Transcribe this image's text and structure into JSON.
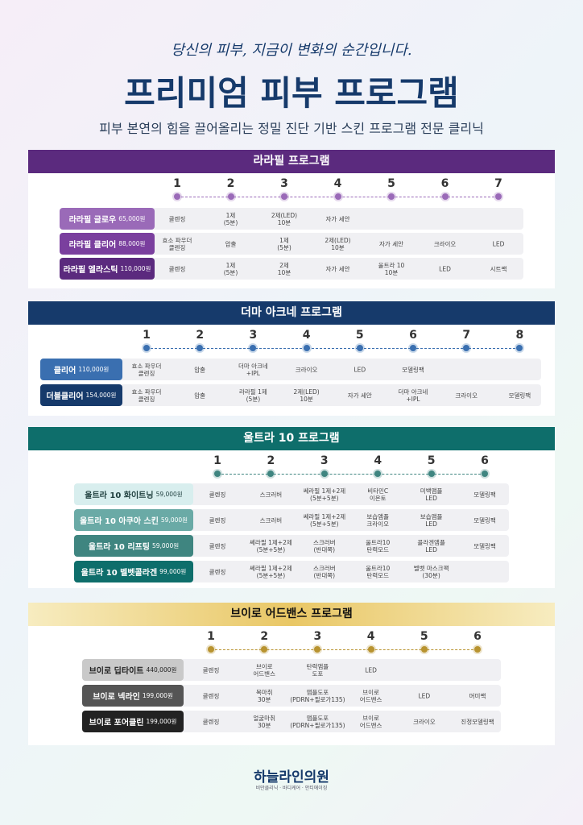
{
  "header": {
    "tagline": "당신의 피부, 지금이 변화의 순간입니다.",
    "title": "프리미엄 피부 프로그램",
    "subtitle": "피부 본연의 힘을 끌어올리는 정밀 진단 기반 스킨 프로그램 전문 클리닉"
  },
  "sections": [
    {
      "title": "라라필 프로그램",
      "steps": [
        1,
        2,
        3,
        4,
        5,
        6,
        7
      ],
      "rows": [
        {
          "name": "라라필 글로우",
          "price": "65,000원",
          "cells": [
            "클렌징",
            "1제\n(5분)",
            "2제(LED)\n10분",
            "자가 세안"
          ]
        },
        {
          "name": "라라필 클리어",
          "price": "88,000원",
          "cells": [
            "효소 파우더\n클렌징",
            "압출",
            "1제\n(5분)",
            "2제(LED)\n10분",
            "자가 세안",
            "크라이오",
            "LED"
          ]
        },
        {
          "name": "라라필 엘라스틱",
          "price": "110,000원",
          "cells": [
            "클렌징",
            "1제\n(5분)",
            "2제\n10분",
            "자가 세안",
            "울트라 10\n10분",
            "LED",
            "시트팩"
          ]
        }
      ]
    },
    {
      "title": "더마 아크네 프로그램",
      "steps": [
        1,
        2,
        3,
        4,
        5,
        6,
        7,
        8
      ],
      "rows": [
        {
          "name": "클리어",
          "price": "110,000원",
          "cells": [
            "효소 파우더\n클렌징",
            "압출",
            "더마 아크네\n+IPL",
            "크라이오",
            "LED",
            "모델링팩"
          ]
        },
        {
          "name": "더블클리어",
          "price": "154,000원",
          "cells": [
            "효소 파우더\n클렌징",
            "압출",
            "라라필 1제\n(5분)",
            "2제(LED)\n10분",
            "자가 세안",
            "더마 아크네\n+IPL",
            "크라이오",
            "모델링팩"
          ]
        }
      ]
    },
    {
      "title": "울트라 10 프로그램",
      "steps": [
        1,
        2,
        3,
        4,
        5,
        6
      ],
      "rows": [
        {
          "name": "울트라 10 화이트닝",
          "price": "59,000원",
          "cells": [
            "클렌징",
            "스크러버",
            "쎄라필 1제+2제\n(5분+5분)",
            "비타민C\n이온토",
            "미백앰플\nLED",
            "모델링팩"
          ]
        },
        {
          "name": "울트라 10 아쿠아 스킨",
          "price": "59,000원",
          "cells": [
            "클렌징",
            "스크러버",
            "쎄라필 1제+2제\n(5분+5분)",
            "보습앰플\n크라이오",
            "보습앰플\nLED",
            "모델링팩"
          ]
        },
        {
          "name": "울트라 10 리프팅",
          "price": "59,000원",
          "cells": [
            "클렌징",
            "쎄라필 1제+2제\n(5분+5분)",
            "스크러버\n(반대쪽)",
            "울트라10\n탄력모드",
            "콜라겐앰플\nLED",
            "모델링팩"
          ]
        },
        {
          "name": "울트라 10 벨벳콜라겐",
          "price": "99,000원",
          "cells": [
            "클렌징",
            "쎄라필 1제+2제\n(5분+5분)",
            "스크러버\n(반대쪽)",
            "울트라10\n탄력모드",
            "벨벳 마스크팩\n(30분)"
          ]
        }
      ]
    },
    {
      "title": "브이로 어드밴스 프로그램",
      "steps": [
        1,
        2,
        3,
        4,
        5,
        6
      ],
      "rows": [
        {
          "name": "브이로 딥타이트",
          "price": "440,000원",
          "cells": [
            "클렌징",
            "브이로\n어드밴스",
            "탄력앰플\n도포",
            "LED"
          ]
        },
        {
          "name": "브이로 넥라인",
          "price": "199,000원",
          "cells": [
            "클렌징",
            "목마취\n30분",
            "앰플도포\n(PDRN+필로가135)",
            "브이로\n어드밴스",
            "LED",
            "머미팩"
          ]
        },
        {
          "name": "브이로 포어클린",
          "price": "199,000원",
          "cells": [
            "클렌징",
            "얼굴마취\n30분",
            "앰플도포\n(PDRN+필로가135)",
            "브이로\n어드밴스",
            "크라이오",
            "진정모델링팩"
          ]
        }
      ]
    }
  ],
  "footer": {
    "logo": "하늘라인의원",
    "sub": "비만클리닉 · 바디케어 · 안티에이징"
  }
}
